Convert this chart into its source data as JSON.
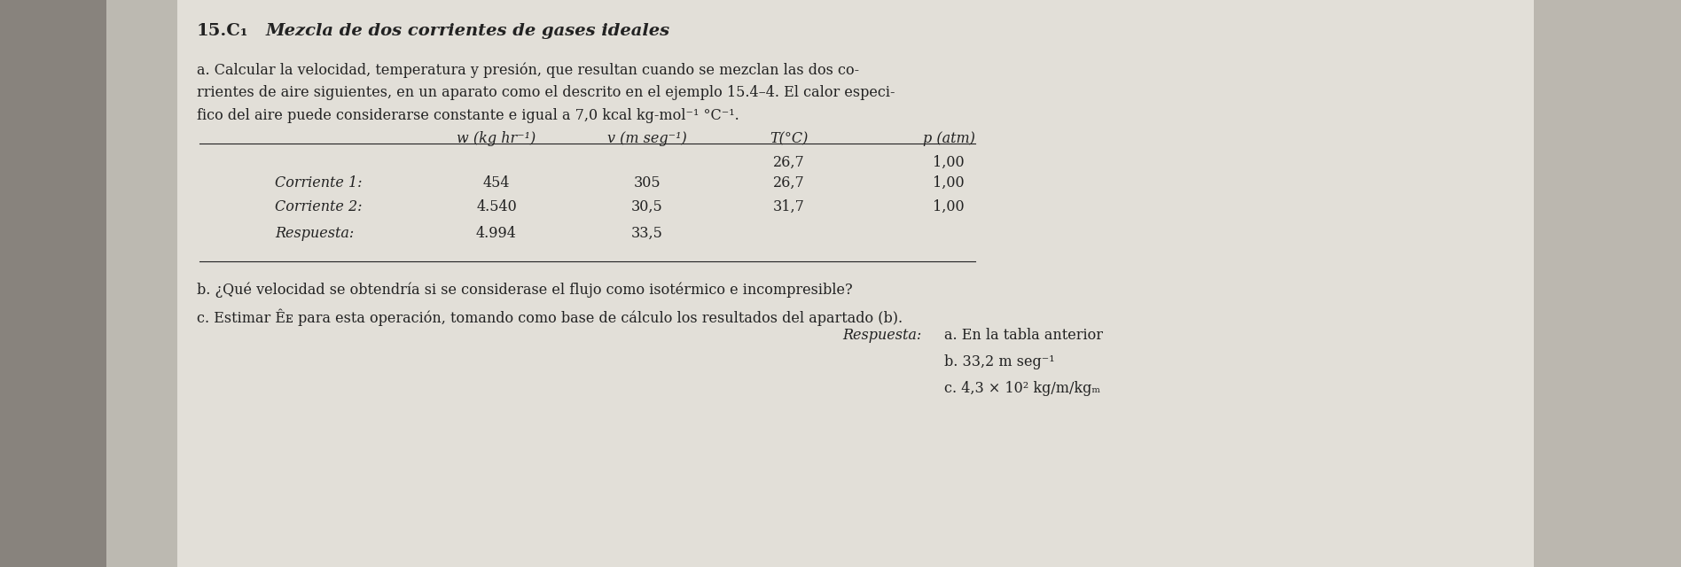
{
  "bg_page": "#d8d4cc",
  "bg_center": "#e8e4dc",
  "bg_left_shadow": "#7a7570",
  "bg_right_shadow": "#b0aba3",
  "title_number": "15.C₁",
  "title_text": "  Mezcla de dos corrientes de gases ideales",
  "line1": "   a. Calcular la velocidad, temperatura y presión, que resultan cuando se mezclan las dos co-",
  "line2": "rrientes de aire siguientes, en un aparato como el descrito en el ejemplo 15.4–4. El calor especi-",
  "line3": "fico del aire puede considerarse constante e igual a 7,0 kcal kg-mol⁻¹ °C⁻¹.",
  "col_header_w": "w (kg hr⁻¹)",
  "col_header_v": "v (m seg⁻¹)",
  "col_header_T": "T(°C)",
  "col_header_p": "p (atm)",
  "extra_T": "26,7",
  "extra_p": "1,00",
  "row1_label": "Corriente 1:",
  "row1_w": "454",
  "row1_v": "305",
  "row1_T": "26,7",
  "row1_p": "1,00",
  "row2_label": "Corriente 2:",
  "row2_w": "4.540",
  "row2_v": "30,5",
  "row2_T": "31,7",
  "row2_p": "1,00",
  "row3_label": "Respuesta:",
  "row3_w": "4.994",
  "row3_v": "33,5",
  "line_b": "b. ¿Qué velocidad se obtendría si se considerase el flujo como isotérmico e incompresible?",
  "line_c1": "c. Estimar Êᴇ para esta operación, tomando como base de cálculo los resultados del apartado (b).",
  "resp_label": "Respuesta:",
  "resp_a": "a. En la tabla anterior",
  "resp_b": "b. 33,2 m seg⁻¹",
  "resp_c": "c. 4,3 × 10² kg/m/kgₘ",
  "tc": "#222222",
  "fs_title": 14,
  "fs_body": 11.5,
  "fs_table": 11.5
}
